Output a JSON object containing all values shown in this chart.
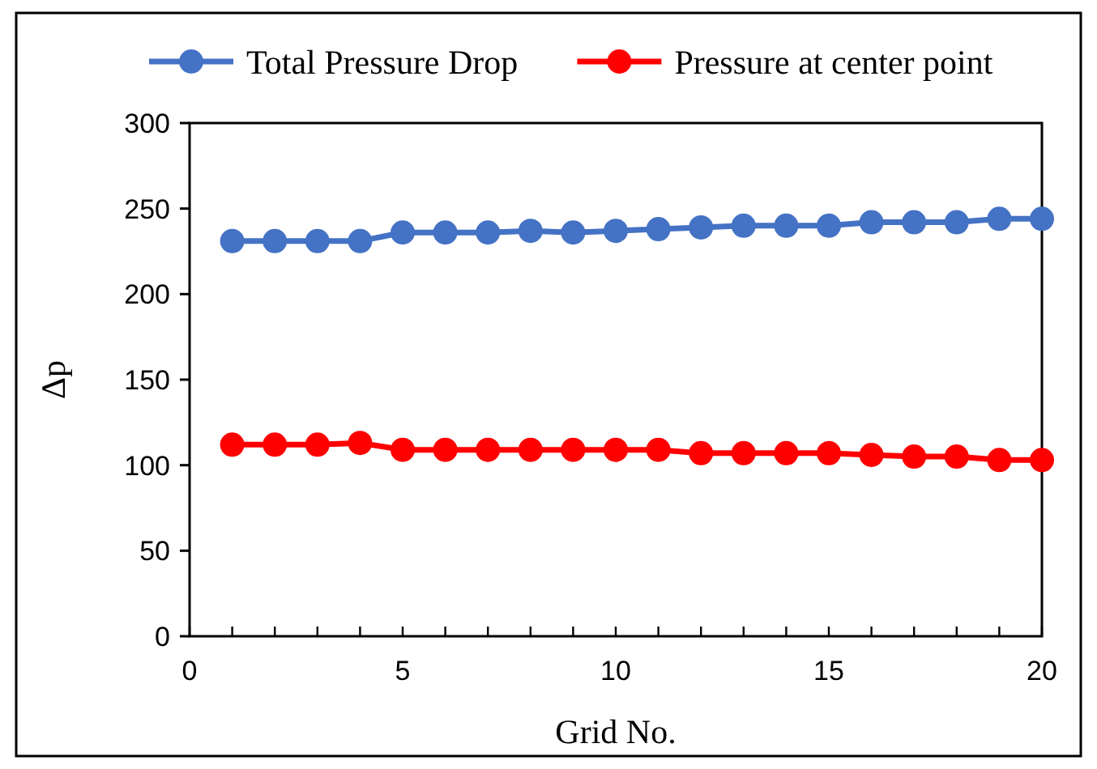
{
  "chart_data": {
    "type": "line",
    "xlabel": "Grid No.",
    "ylabel": "Δp",
    "x": [
      1,
      2,
      3,
      4,
      5,
      6,
      7,
      8,
      9,
      10,
      11,
      12,
      13,
      14,
      15,
      16,
      17,
      18,
      19,
      20
    ],
    "series": [
      {
        "name": "Total Pressure Drop",
        "color": "#4472c4",
        "values": [
          231,
          231,
          231,
          231,
          236,
          236,
          236,
          237,
          236,
          237,
          238,
          239,
          240,
          240,
          240,
          242,
          242,
          242,
          244,
          244
        ]
      },
      {
        "name": "Pressure at center point",
        "color": "#ff0000",
        "values": [
          112,
          112,
          112,
          113,
          109,
          109,
          109,
          109,
          109,
          109,
          109,
          107,
          107,
          107,
          107,
          106,
          105,
          105,
          103,
          103
        ]
      }
    ],
    "xlim": [
      0,
      20
    ],
    "xticks": [
      0,
      5,
      10,
      15,
      20
    ],
    "ylim": [
      0,
      300
    ],
    "yticks": [
      0,
      50,
      100,
      150,
      200,
      250,
      300
    ],
    "grid": false,
    "legend": "top",
    "marker": "circle",
    "line_style": "solid"
  }
}
